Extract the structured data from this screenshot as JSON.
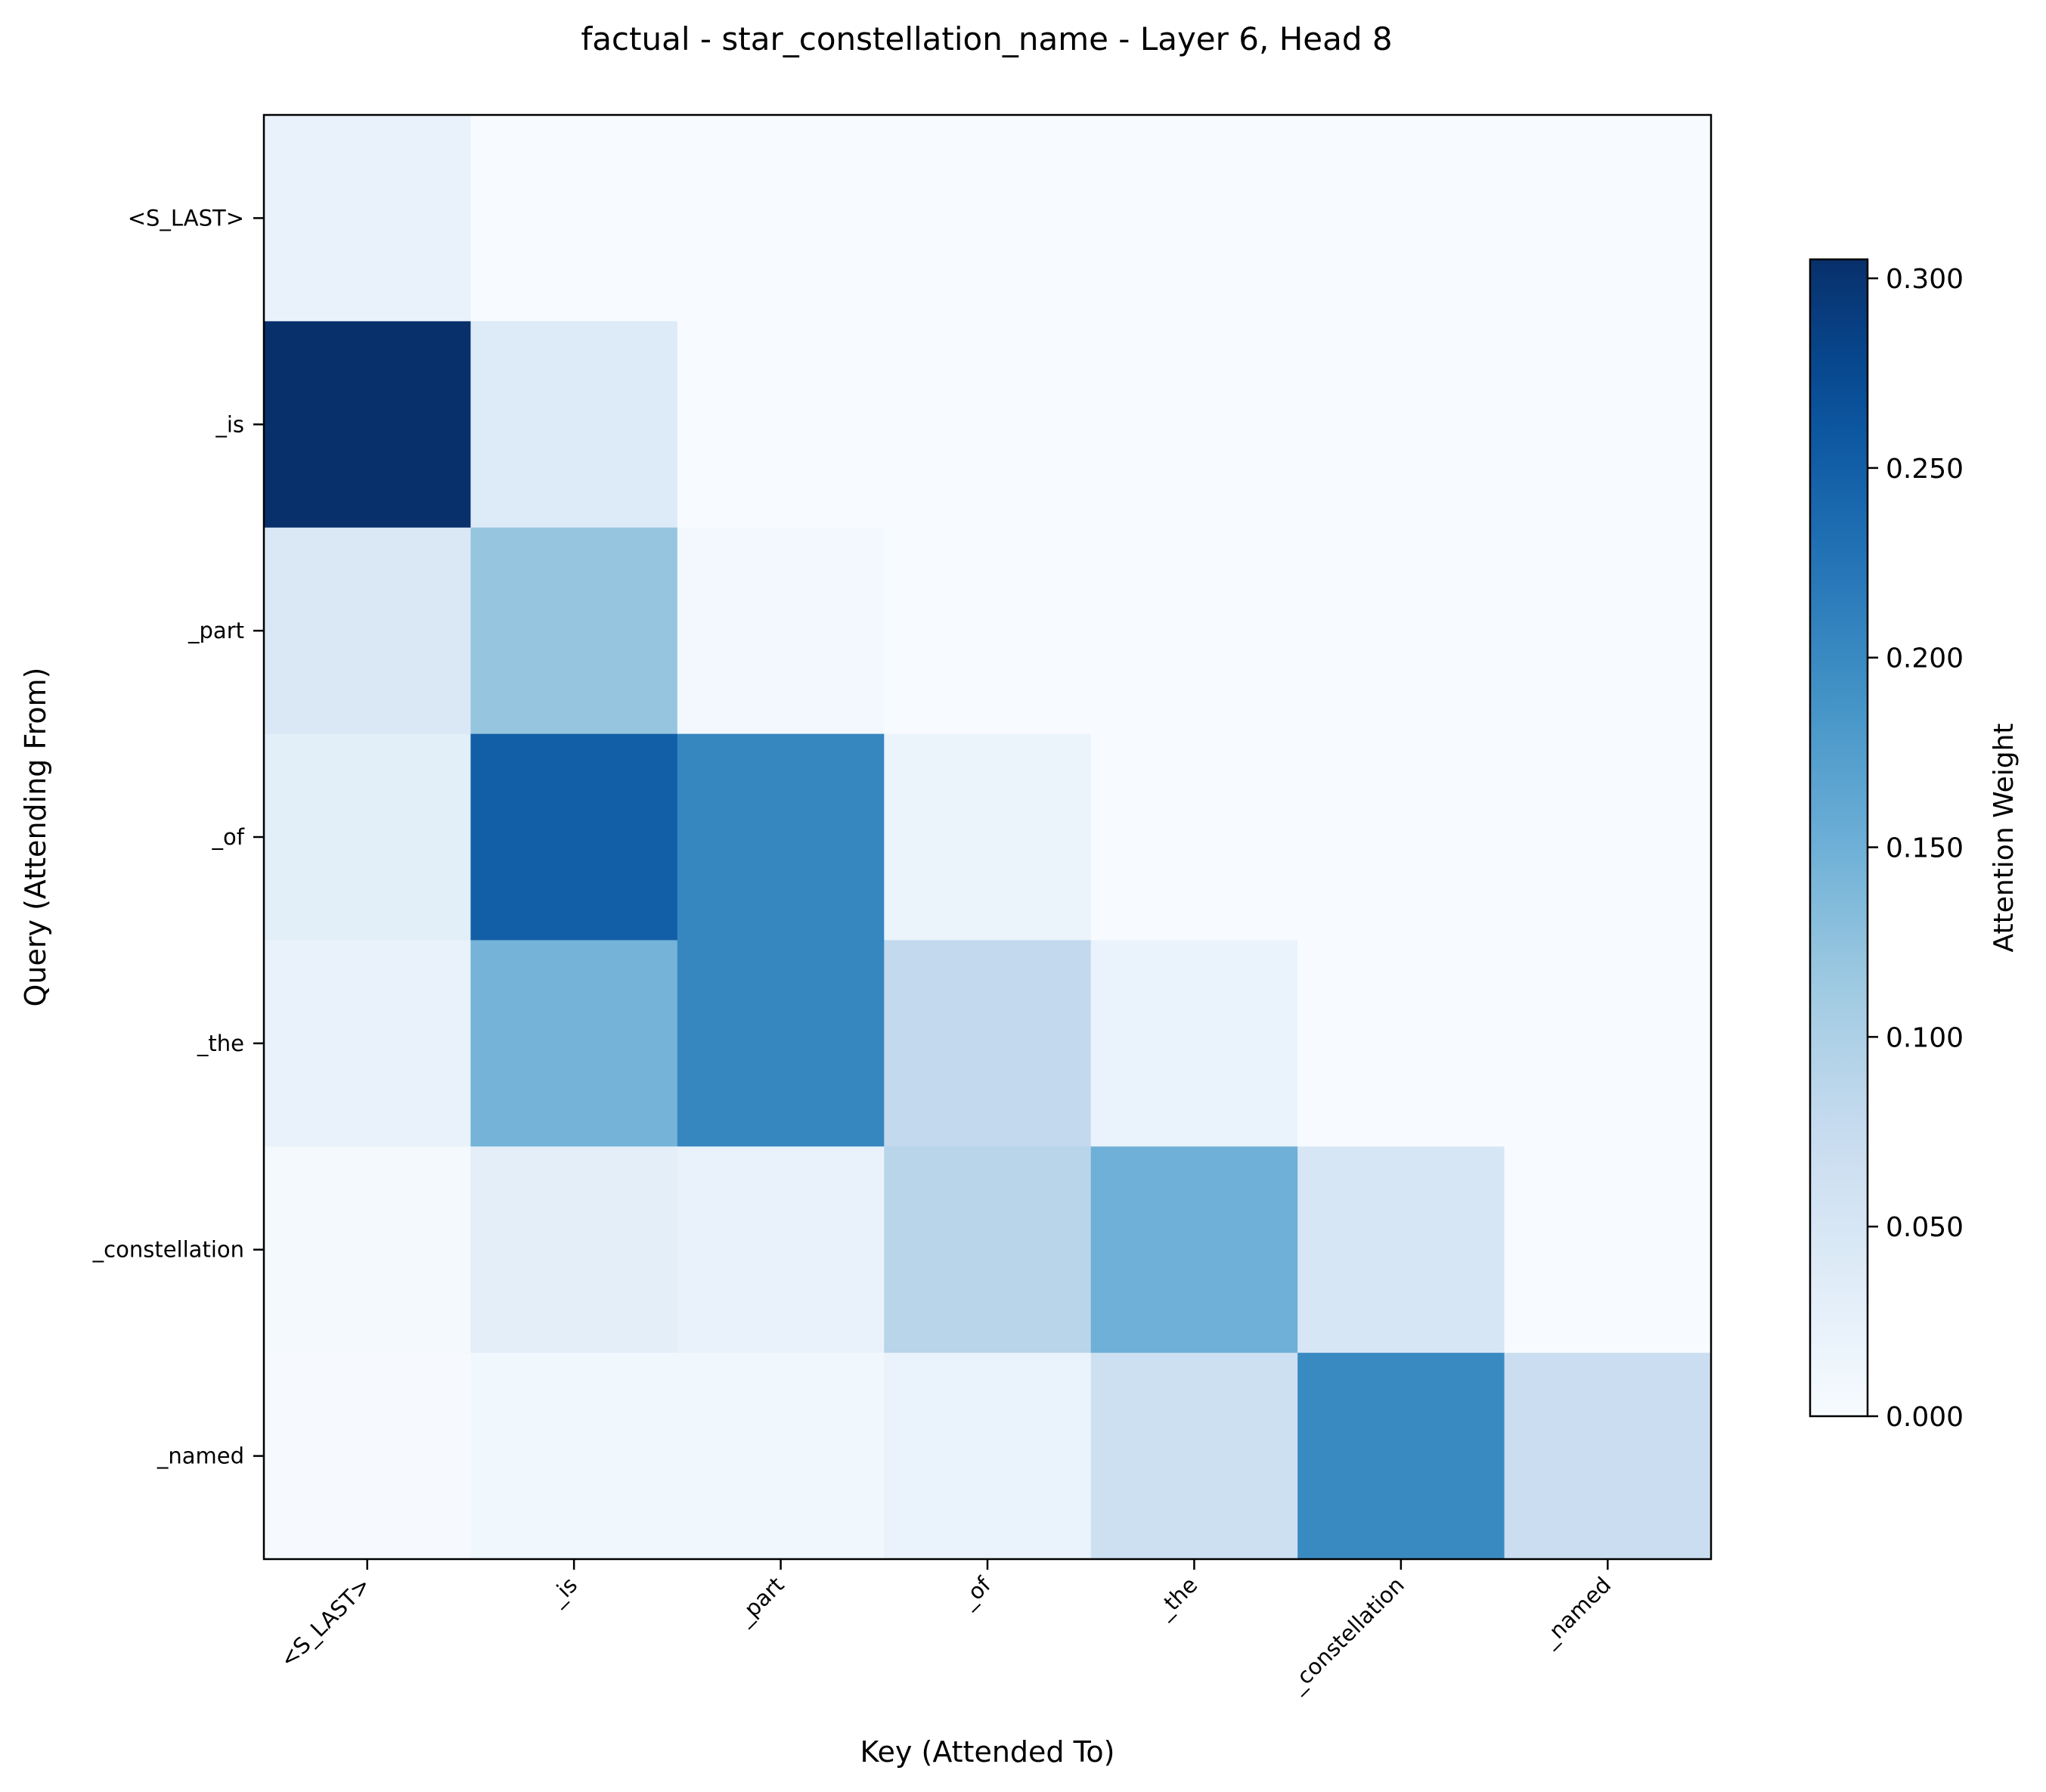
{
  "chart_data": {
    "type": "heatmap",
    "title": "factual - star_constellation_name - Layer 6, Head 8",
    "xlabel": "Key (Attended To)",
    "ylabel": "Query (Attending From)",
    "x_categories": [
      "<S_LAST>",
      "_is",
      "_part",
      "_of",
      "_the",
      "_constellation",
      "_named"
    ],
    "y_categories": [
      "<S_LAST>",
      "_is",
      "_part",
      "_of",
      "_the",
      "_constellation",
      "_named"
    ],
    "values": [
      [
        0.022,
        0.0,
        0.0,
        0.0,
        0.0,
        0.0,
        0.0
      ],
      [
        0.305,
        0.04,
        0.0,
        0.0,
        0.0,
        0.0,
        0.0
      ],
      [
        0.045,
        0.12,
        0.008,
        0.0,
        0.0,
        0.0,
        0.0
      ],
      [
        0.032,
        0.25,
        0.205,
        0.018,
        0.0,
        0.0,
        0.0
      ],
      [
        0.022,
        0.145,
        0.205,
        0.08,
        0.02,
        0.0,
        0.0
      ],
      [
        0.004,
        0.03,
        0.022,
        0.09,
        0.15,
        0.05,
        0.0
      ],
      [
        0.002,
        0.01,
        0.01,
        0.02,
        0.065,
        0.2,
        0.068
      ]
    ],
    "colormap": "Blues",
    "colorbar": {
      "label": "Attention Weight",
      "range": [
        0,
        0.305
      ],
      "ticks": [
        0.0,
        0.05,
        0.1,
        0.15,
        0.2,
        0.25,
        0.3
      ],
      "tick_labels": [
        "0.000",
        "0.050",
        "0.100",
        "0.150",
        "0.200",
        "0.250",
        "0.300"
      ]
    },
    "grid": false
  }
}
